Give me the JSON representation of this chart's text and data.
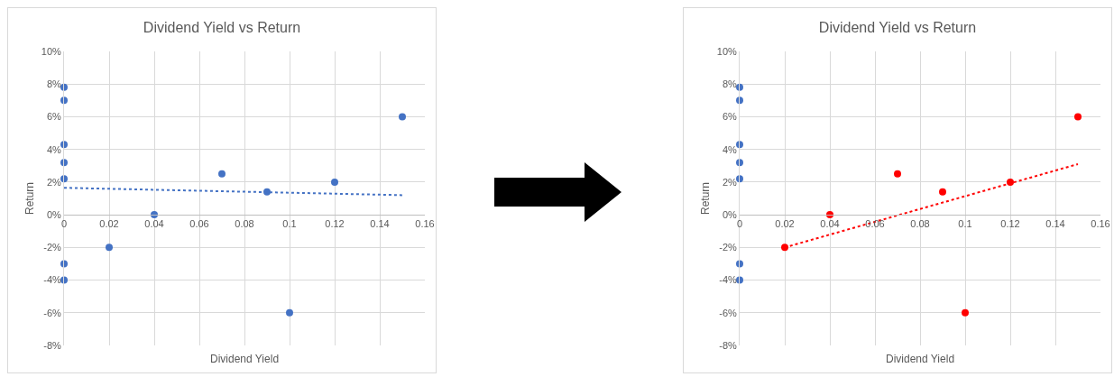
{
  "chart_data": [
    {
      "type": "scatter",
      "title": "Dividend Yield vs Return",
      "xlabel": "Dividend Yield",
      "ylabel": "Return",
      "marker": "circle",
      "grid": true,
      "legend": false,
      "xlim": [
        0,
        0.16
      ],
      "xticks": [
        0,
        0.02,
        0.04,
        0.06,
        0.08,
        0.1,
        0.12,
        0.14,
        0.16
      ],
      "ylim": [
        -8,
        10
      ],
      "yticks": [
        {
          "value": -8,
          "label": "-8%"
        },
        {
          "value": -6,
          "label": "-6%"
        },
        {
          "value": -4,
          "label": "-4%"
        },
        {
          "value": -2,
          "label": "-2%"
        },
        {
          "value": 0,
          "label": "0%"
        },
        {
          "value": 2,
          "label": "2%"
        },
        {
          "value": 4,
          "label": "4%"
        },
        {
          "value": 6,
          "label": "6%"
        },
        {
          "value": 8,
          "label": "8%"
        },
        {
          "value": 10,
          "label": "10%"
        }
      ],
      "series": [
        {
          "color": "#4472c4",
          "x": [
            0,
            0,
            0,
            0,
            0,
            0,
            0,
            0.02,
            0.04,
            0.07,
            0.09,
            0.1,
            0.12,
            0.15
          ],
          "values": [
            7.8,
            7,
            4.3,
            3.2,
            2.2,
            -3,
            -4,
            -2,
            0,
            2.5,
            1.4,
            -6,
            2,
            6
          ]
        },
        {
          "type": "line",
          "marker": "none",
          "line_style": "dotted",
          "color": "#4472c4",
          "x": [
            0,
            0.15
          ],
          "values": [
            1.65,
            1.2
          ]
        }
      ]
    },
    {
      "type": "scatter",
      "title": "Dividend Yield vs Return",
      "xlabel": "Dividend Yield",
      "ylabel": "Return",
      "marker": "circle",
      "grid": true,
      "legend": false,
      "xlim": [
        0,
        0.16
      ],
      "xticks": [
        0,
        0.02,
        0.04,
        0.06,
        0.08,
        0.1,
        0.12,
        0.14,
        0.16
      ],
      "ylim": [
        -8,
        10
      ],
      "yticks": [
        {
          "value": -8,
          "label": "-8%"
        },
        {
          "value": -6,
          "label": "-6%"
        },
        {
          "value": -4,
          "label": "-4%"
        },
        {
          "value": -2,
          "label": "-2%"
        },
        {
          "value": 0,
          "label": "0%"
        },
        {
          "value": 2,
          "label": "2%"
        },
        {
          "value": 4,
          "label": "4%"
        },
        {
          "value": 6,
          "label": "6%"
        },
        {
          "value": 8,
          "label": "8%"
        },
        {
          "value": 10,
          "label": "10%"
        }
      ],
      "series": [
        {
          "color": "#4472c4",
          "x": [
            0,
            0,
            0,
            0,
            0,
            0,
            0
          ],
          "values": [
            7.8,
            7,
            4.3,
            3.2,
            2.2,
            -3,
            -4
          ]
        },
        {
          "color": "#ff0000",
          "x": [
            0.02,
            0.04,
            0.07,
            0.09,
            0.1,
            0.12,
            0.15
          ],
          "values": [
            -2,
            0,
            2.5,
            1.4,
            -6,
            2,
            6
          ]
        },
        {
          "type": "line",
          "marker": "none",
          "line_style": "dotted",
          "color": "#ff0000",
          "x": [
            0.02,
            0.15
          ],
          "values": [
            -2,
            3.1
          ]
        }
      ]
    }
  ]
}
